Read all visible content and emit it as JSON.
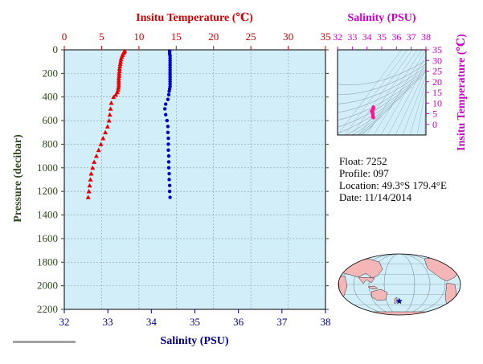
{
  "chart_data": [
    {
      "type": "scatter",
      "title": "",
      "top_axis": {
        "label": "Insitu Temperature (℃)",
        "color": "#d40000",
        "range": [
          0,
          35
        ],
        "ticks": [
          "0",
          "5",
          "10",
          "15",
          "20",
          "25",
          "30",
          "35"
        ]
      },
      "bottom_axis": {
        "label": "Salinity (PSU)",
        "color": "#00008b",
        "range": [
          32,
          38
        ],
        "ticks": [
          "32",
          "33",
          "34",
          "35",
          "36",
          "37",
          "38"
        ]
      },
      "left_axis": {
        "label": "Pressure (decibar)",
        "color": "#2e4a1e",
        "range": [
          0,
          2200
        ],
        "inverted": true,
        "ticks": [
          "0",
          "200",
          "400",
          "600",
          "800",
          "1000",
          "1200",
          "1400",
          "1600",
          "1800",
          "2000",
          "2200"
        ]
      },
      "background": "#d2eef8",
      "grid": true,
      "series": [
        {
          "marker": "triangle",
          "color": "#e60000",
          "axis": "top",
          "points": [
            {
              "x": 8.1,
              "y": 10
            },
            {
              "x": 8.0,
              "y": 20
            },
            {
              "x": 7.9,
              "y": 30
            },
            {
              "x": 7.8,
              "y": 45
            },
            {
              "x": 7.7,
              "y": 60
            },
            {
              "x": 7.6,
              "y": 80
            },
            {
              "x": 7.55,
              "y": 100
            },
            {
              "x": 7.5,
              "y": 120
            },
            {
              "x": 7.45,
              "y": 140
            },
            {
              "x": 7.4,
              "y": 160
            },
            {
              "x": 7.4,
              "y": 180
            },
            {
              "x": 7.35,
              "y": 200
            },
            {
              "x": 7.35,
              "y": 220
            },
            {
              "x": 7.3,
              "y": 240
            },
            {
              "x": 7.3,
              "y": 260
            },
            {
              "x": 7.3,
              "y": 280
            },
            {
              "x": 7.3,
              "y": 300
            },
            {
              "x": 7.25,
              "y": 320
            },
            {
              "x": 7.2,
              "y": 340
            },
            {
              "x": 7.1,
              "y": 360
            },
            {
              "x": 6.9,
              "y": 380
            },
            {
              "x": 6.6,
              "y": 400
            },
            {
              "x": 6.3,
              "y": 450
            },
            {
              "x": 6.2,
              "y": 500
            },
            {
              "x": 6.1,
              "y": 550
            },
            {
              "x": 6.0,
              "y": 600
            },
            {
              "x": 5.8,
              "y": 650
            },
            {
              "x": 5.5,
              "y": 700
            },
            {
              "x": 5.2,
              "y": 750
            },
            {
              "x": 4.9,
              "y": 800
            },
            {
              "x": 4.6,
              "y": 850
            },
            {
              "x": 4.3,
              "y": 900
            },
            {
              "x": 4.0,
              "y": 950
            },
            {
              "x": 3.8,
              "y": 1000
            },
            {
              "x": 3.6,
              "y": 1050
            },
            {
              "x": 3.5,
              "y": 1100
            },
            {
              "x": 3.4,
              "y": 1150
            },
            {
              "x": 3.3,
              "y": 1200
            },
            {
              "x": 3.2,
              "y": 1250
            }
          ]
        },
        {
          "marker": "circle",
          "color": "#0000cc",
          "axis": "bottom",
          "points": [
            {
              "x": 34.42,
              "y": 10
            },
            {
              "x": 34.42,
              "y": 20
            },
            {
              "x": 34.42,
              "y": 35
            },
            {
              "x": 34.43,
              "y": 50
            },
            {
              "x": 34.43,
              "y": 70
            },
            {
              "x": 34.43,
              "y": 90
            },
            {
              "x": 34.43,
              "y": 110
            },
            {
              "x": 34.43,
              "y": 130
            },
            {
              "x": 34.43,
              "y": 150
            },
            {
              "x": 34.43,
              "y": 170
            },
            {
              "x": 34.43,
              "y": 190
            },
            {
              "x": 34.43,
              "y": 210
            },
            {
              "x": 34.43,
              "y": 230
            },
            {
              "x": 34.43,
              "y": 250
            },
            {
              "x": 34.43,
              "y": 270
            },
            {
              "x": 34.43,
              "y": 290
            },
            {
              "x": 34.43,
              "y": 310
            },
            {
              "x": 34.42,
              "y": 330
            },
            {
              "x": 34.41,
              "y": 350
            },
            {
              "x": 34.4,
              "y": 380
            },
            {
              "x": 34.38,
              "y": 420
            },
            {
              "x": 34.33,
              "y": 460
            },
            {
              "x": 34.31,
              "y": 500
            },
            {
              "x": 34.33,
              "y": 550
            },
            {
              "x": 34.36,
              "y": 600
            },
            {
              "x": 34.38,
              "y": 650
            },
            {
              "x": 34.38,
              "y": 700
            },
            {
              "x": 34.39,
              "y": 750
            },
            {
              "x": 34.39,
              "y": 800
            },
            {
              "x": 34.39,
              "y": 850
            },
            {
              "x": 34.4,
              "y": 900
            },
            {
              "x": 34.4,
              "y": 950
            },
            {
              "x": 34.4,
              "y": 1000
            },
            {
              "x": 34.41,
              "y": 1050
            },
            {
              "x": 34.41,
              "y": 1100
            },
            {
              "x": 34.42,
              "y": 1150
            },
            {
              "x": 34.42,
              "y": 1200
            },
            {
              "x": 34.43,
              "y": 1250
            }
          ]
        }
      ]
    },
    {
      "type": "scatter",
      "title": "",
      "top_axis": {
        "label": "Salinity (PSU)",
        "color": "#cc00cc",
        "range": [
          32,
          38
        ],
        "ticks": [
          "32",
          "33",
          "34",
          "35",
          "36",
          "37",
          "38"
        ]
      },
      "right_axis": {
        "label": "Insitu Temperature (℃)",
        "color": "#cc00cc",
        "range": [
          -5,
          35
        ],
        "ticks": [
          "0",
          "5",
          "10",
          "15",
          "20",
          "25",
          "30",
          "35"
        ]
      },
      "background": "#d2eef8",
      "density_contours": true,
      "series": [
        {
          "marker": "circle",
          "color": "#ff1493",
          "points": [
            {
              "x": 34.43,
              "y": 8.1
            },
            {
              "x": 34.43,
              "y": 7.7
            },
            {
              "x": 34.43,
              "y": 7.4
            },
            {
              "x": 34.43,
              "y": 7.3
            },
            {
              "x": 34.42,
              "y": 7.1
            },
            {
              "x": 34.38,
              "y": 6.6
            },
            {
              "x": 34.31,
              "y": 6.2
            },
            {
              "x": 34.36,
              "y": 6.0
            },
            {
              "x": 34.38,
              "y": 5.5
            },
            {
              "x": 34.39,
              "y": 4.9
            },
            {
              "x": 34.4,
              "y": 4.3
            },
            {
              "x": 34.4,
              "y": 3.8
            },
            {
              "x": 34.41,
              "y": 3.5
            },
            {
              "x": 34.42,
              "y": 3.3
            },
            {
              "x": 34.43,
              "y": 3.2
            }
          ]
        }
      ]
    }
  ],
  "info": {
    "float": "Float:  7252",
    "profile": "Profile:  097",
    "location": "Location:  49.3°S  179.4°E",
    "date": "Date:  11/14/2014"
  },
  "map": {
    "land_color": "#f4b6b6",
    "ocean_color": "#d2eef8",
    "marker_color": "#0000cc",
    "marker_lat": -49.3,
    "marker_lon": 179.4
  }
}
